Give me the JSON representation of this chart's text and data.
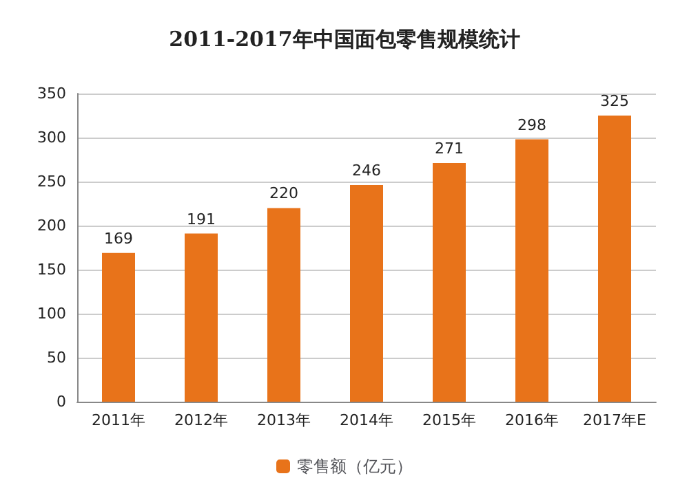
{
  "chart_data": {
    "type": "bar",
    "title": "2011-2017年中国面包零售规模统计",
    "categories": [
      "2011年",
      "2012年",
      "2013年",
      "2014年",
      "2015年",
      "2016年",
      "2017年E"
    ],
    "series": [
      {
        "name": "零售额（亿元）",
        "color": "#e8731a",
        "values": [
          169,
          191,
          220,
          246,
          271,
          298,
          325
        ]
      }
    ],
    "ylim": [
      0,
      350
    ],
    "yticks": [
      0,
      50,
      100,
      150,
      200,
      250,
      300,
      350
    ],
    "grid": "y",
    "legend": "bottom",
    "data_labels": true
  }
}
